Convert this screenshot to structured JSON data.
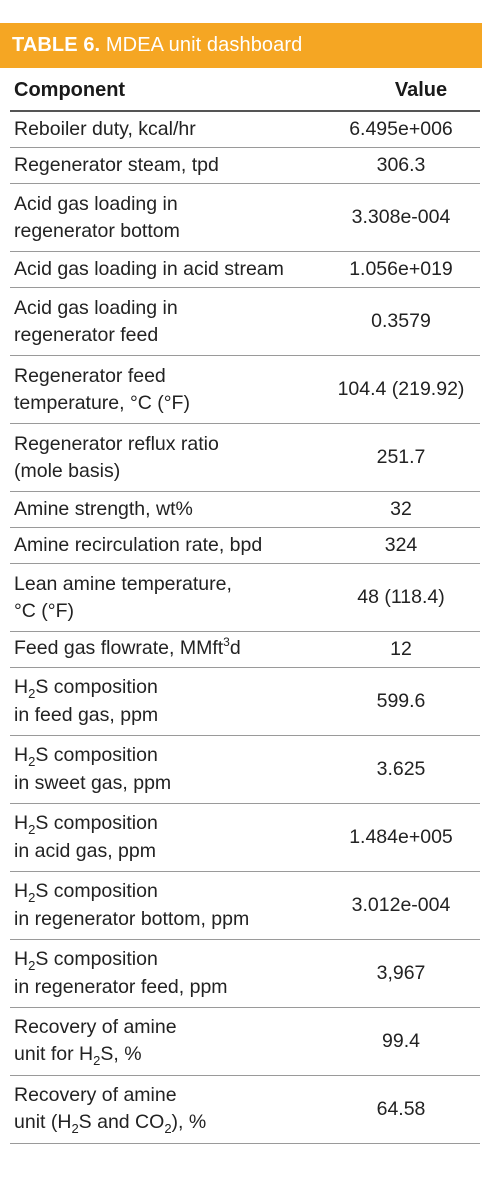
{
  "title": {
    "label": "TABLE 6.",
    "text": "MDEA unit dashboard"
  },
  "headers": {
    "component": "Component",
    "value": "Value"
  },
  "rows": [
    {
      "line1": "Reboiler duty, kcal/hr",
      "value": "6.495e+006"
    },
    {
      "line1": "Regenerator steam, tpd",
      "value": "306.3"
    },
    {
      "line1": "Acid gas loading in",
      "line2": "regenerator bottom",
      "value": "3.308e-004"
    },
    {
      "line1": "Acid gas loading in acid stream",
      "value": "1.056e+019"
    },
    {
      "line1": "Acid gas loading in",
      "line2": "regenerator feed",
      "value": "0.3579"
    },
    {
      "line1": "Regenerator feed",
      "line2": "temperature, °C (°F)",
      "value": "104.4 (219.92)"
    },
    {
      "line1": "Regenerator reflux ratio",
      "line2": "(mole basis)",
      "value": "251.7"
    },
    {
      "line1": "Amine strength, wt%",
      "value": "32"
    },
    {
      "line1": "Amine recirculation rate, bpd",
      "value": "324"
    },
    {
      "line1": "Lean amine temperature,",
      "line2": "°C (°F)",
      "value": "48 (118.4)"
    },
    {
      "line1_pre": "Feed gas flowrate, MMft",
      "line1_sup": "3",
      "line1_post": "d",
      "value": "12"
    },
    {
      "l1a": "H",
      "l1sub": "2",
      "l1b": "S composition",
      "line2": "in feed gas, ppm",
      "value": "599.6"
    },
    {
      "l1a": "H",
      "l1sub": "2",
      "l1b": "S composition",
      "line2": "in sweet gas, ppm",
      "value": "3.625"
    },
    {
      "l1a": "H",
      "l1sub": "2",
      "l1b": "S composition",
      "line2": "in acid gas, ppm",
      "value": "1.484e+005"
    },
    {
      "l1a": "H",
      "l1sub": "2",
      "l1b": "S composition",
      "line2": "in regenerator bottom, ppm",
      "value": "3.012e-004"
    },
    {
      "l1a": "H",
      "l1sub": "2",
      "l1b": "S composition",
      "line2": "in regenerator feed, ppm",
      "value": "3,967"
    },
    {
      "line1": "Recovery of amine",
      "l2a": "unit for H",
      "l2sub": "2",
      "l2b": "S, %",
      "value": "99.4"
    },
    {
      "line1": "Recovery of amine",
      "l2a": "unit (H",
      "l2sub": "2",
      "l2b": "S and CO",
      "l2sub2": "2",
      "l2c": "), %",
      "value": "64.58"
    }
  ]
}
